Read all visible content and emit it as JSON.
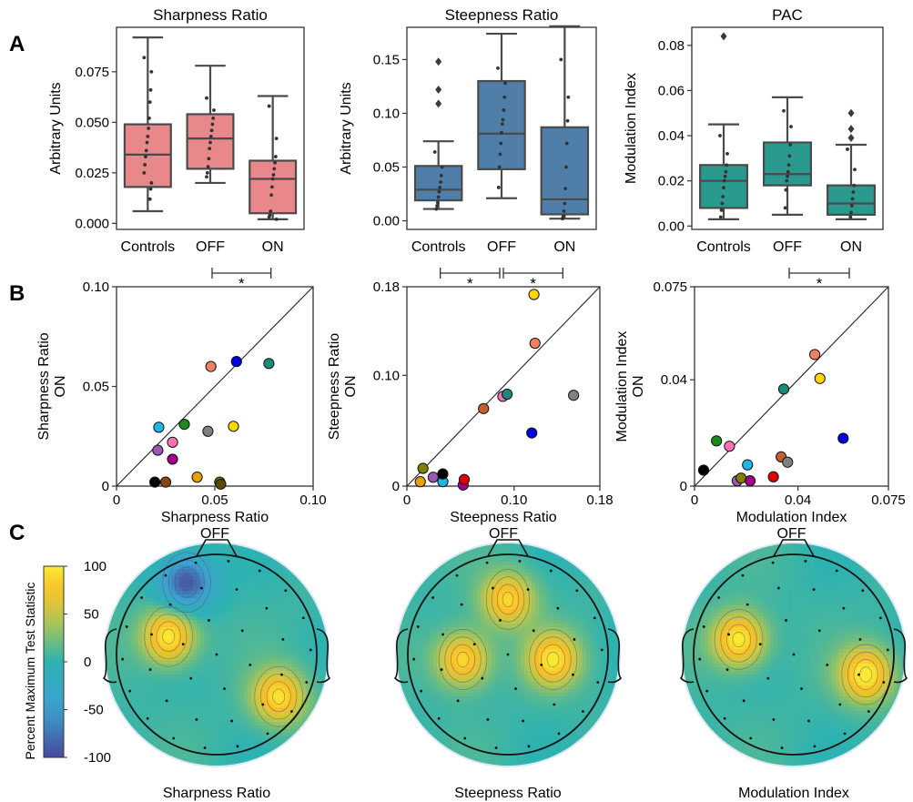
{
  "panel_labels": [
    "A",
    "B",
    "C"
  ],
  "colors": {
    "sharpness_box": "#e8888a",
    "steepness_box": "#4f7fa8",
    "pac_box": "#2a9a8f"
  },
  "chart_data": [
    {
      "type": "box",
      "id": "sharp_box",
      "title": "Sharpness Ratio",
      "ylabel": "Arbitrary Units",
      "ylim": [
        -0.003,
        0.097
      ],
      "yticks": [
        0,
        0.025,
        0.05,
        0.075
      ],
      "ytick_labels": [
        "0.000",
        "0.025",
        "0.050",
        "0.075"
      ],
      "categories": [
        "Controls",
        "OFF",
        "ON"
      ],
      "boxes": [
        {
          "q1": 0.018,
          "median": 0.034,
          "q3": 0.049,
          "whisker_low": 0.006,
          "whisker_high": 0.092,
          "outliers": []
        },
        {
          "q1": 0.027,
          "median": 0.042,
          "q3": 0.054,
          "whisker_low": 0.02,
          "whisker_high": 0.078,
          "outliers": []
        },
        {
          "q1": 0.005,
          "median": 0.022,
          "q3": 0.031,
          "whisker_low": 0.002,
          "whisker_high": 0.063,
          "outliers": []
        }
      ],
      "points": [
        [
          0.082,
          0.075,
          0.066,
          0.06,
          0.052,
          0.047,
          0.043,
          0.04,
          0.036,
          0.033,
          0.029,
          0.025,
          0.02,
          0.017,
          0.012
        ],
        [
          0.062,
          0.056,
          0.052,
          0.049,
          0.046,
          0.043,
          0.04,
          0.037,
          0.032,
          0.028,
          0.025,
          0.023
        ],
        [
          0.058,
          0.042,
          0.033,
          0.03,
          0.027,
          0.024,
          0.022,
          0.018,
          0.014,
          0.006,
          0.004,
          0.003,
          0.002
        ]
      ],
      "significance": [
        {
          "from": "OFF",
          "to": "ON",
          "label": "*"
        }
      ]
    },
    {
      "type": "box",
      "id": "steep_box",
      "title": "Steepness Ratio",
      "ylabel": "Arbitrary Units",
      "ylim": [
        -0.008,
        0.18
      ],
      "yticks": [
        0,
        0.05,
        0.1,
        0.15
      ],
      "ytick_labels": [
        "0.00",
        "0.05",
        "0.10",
        "0.15"
      ],
      "categories": [
        "Controls",
        "OFF",
        "ON"
      ],
      "boxes": [
        {
          "q1": 0.019,
          "median": 0.029,
          "q3": 0.051,
          "whisker_low": 0.011,
          "whisker_high": 0.074,
          "outliers": [
            0.148,
            0.122,
            0.109
          ]
        },
        {
          "q1": 0.048,
          "median": 0.081,
          "q3": 0.13,
          "whisker_low": 0.021,
          "whisker_high": 0.174,
          "outliers": []
        },
        {
          "q1": 0.006,
          "median": 0.02,
          "q3": 0.087,
          "whisker_low": 0.002,
          "whisker_high": 0.181,
          "outliers": []
        }
      ],
      "points": [
        [
          0.064,
          0.05,
          0.042,
          0.036,
          0.031,
          0.027,
          0.022,
          0.017,
          0.014,
          0.011
        ],
        [
          0.142,
          0.128,
          0.115,
          0.103,
          0.094,
          0.09,
          0.082,
          0.072,
          0.062,
          0.05,
          0.031
        ],
        [
          0.15,
          0.115,
          0.093,
          0.072,
          0.05,
          0.03,
          0.016,
          0.009,
          0.004,
          0.002
        ]
      ],
      "significance": [
        {
          "from": "Controls",
          "to": "OFF",
          "label": "*"
        },
        {
          "from": "OFF",
          "to": "ON",
          "label": "*"
        }
      ]
    },
    {
      "type": "box",
      "id": "pac_box",
      "title": "PAC",
      "ylabel": "Modulation Index",
      "ylim": [
        -0.0015,
        0.088
      ],
      "yticks": [
        0,
        0.02,
        0.04,
        0.06,
        0.08
      ],
      "ytick_labels": [
        "0.00",
        "0.02",
        "0.04",
        "0.06",
        "0.08"
      ],
      "categories": [
        "Controls",
        "OFF",
        "ON"
      ],
      "boxes": [
        {
          "q1": 0.008,
          "median": 0.02,
          "q3": 0.027,
          "whisker_low": 0.003,
          "whisker_high": 0.045,
          "outliers": [
            0.084
          ]
        },
        {
          "q1": 0.018,
          "median": 0.023,
          "q3": 0.037,
          "whisker_low": 0.005,
          "whisker_high": 0.057,
          "outliers": []
        },
        {
          "q1": 0.005,
          "median": 0.01,
          "q3": 0.018,
          "whisker_low": 0.003,
          "whisker_high": 0.036,
          "outliers": [
            0.05,
            0.043,
            0.039
          ]
        }
      ],
      "points": [
        [
          0.04,
          0.032,
          0.027,
          0.024,
          0.022,
          0.02,
          0.017,
          0.013,
          0.01,
          0.007,
          0.004
        ],
        [
          0.051,
          0.044,
          0.036,
          0.031,
          0.027,
          0.024,
          0.022,
          0.02,
          0.016,
          0.008
        ],
        [
          0.034,
          0.025,
          0.018,
          0.015,
          0.012,
          0.009,
          0.006,
          0.004
        ]
      ],
      "significance": [
        {
          "from": "OFF",
          "to": "ON",
          "label": "*"
        }
      ]
    },
    {
      "type": "scatter",
      "id": "sharp_scatter",
      "xlabel": [
        "Sharpness Ratio",
        "OFF"
      ],
      "ylabel": [
        "Sharpness Ratio",
        "ON"
      ],
      "xlim": [
        0,
        0.1
      ],
      "ylim": [
        0,
        0.1
      ],
      "xticks": [
        0,
        0.05,
        0.1
      ],
      "xtick_labels": [
        "0",
        "0.05",
        "0.10"
      ],
      "yticks": [
        0,
        0.05,
        0.1
      ],
      "ytick_labels": [
        "0",
        "0.05",
        "0.10"
      ],
      "identity_line": true,
      "points": [
        {
          "x": 0.0195,
          "y": 0.002,
          "color": "#000000"
        },
        {
          "x": 0.025,
          "y": 0.002,
          "color": "#8b4513"
        },
        {
          "x": 0.0215,
          "y": 0.0295,
          "color": "#1fb5e8"
        },
        {
          "x": 0.021,
          "y": 0.018,
          "color": "#9b59b6"
        },
        {
          "x": 0.0285,
          "y": 0.022,
          "color": "#ff6fb5"
        },
        {
          "x": 0.0285,
          "y": 0.0135,
          "color": "#a0008c"
        },
        {
          "x": 0.0345,
          "y": 0.031,
          "color": "#1a8a1a"
        },
        {
          "x": 0.041,
          "y": 0.0045,
          "color": "#e6a000"
        },
        {
          "x": 0.0465,
          "y": 0.0275,
          "color": "#808080"
        },
        {
          "x": 0.048,
          "y": 0.06,
          "color": "#f08060"
        },
        {
          "x": 0.0525,
          "y": 0.002,
          "color": "#808000"
        },
        {
          "x": 0.053,
          "y": 0.001,
          "color": "#5a4a00"
        },
        {
          "x": 0.0595,
          "y": 0.03,
          "color": "#ffd700"
        },
        {
          "x": 0.061,
          "y": 0.0625,
          "color": "#0000e0"
        },
        {
          "x": 0.0775,
          "y": 0.0615,
          "color": "#1a8a7a"
        }
      ]
    },
    {
      "type": "scatter",
      "id": "steep_scatter",
      "xlabel": [
        "Steepness Ratio",
        "OFF"
      ],
      "ylabel": [
        "Steepness Ratio",
        "ON"
      ],
      "xlim": [
        0,
        0.18
      ],
      "ylim": [
        0,
        0.18
      ],
      "xticks": [
        0,
        0.1,
        0.18
      ],
      "xtick_labels": [
        "0",
        "0.10",
        "0.18"
      ],
      "yticks": [
        0,
        0.1,
        0.18
      ],
      "ytick_labels": [
        "0",
        "0.10",
        "0.18"
      ],
      "identity_line": true,
      "points": [
        {
          "x": 0.0125,
          "y": 0.004,
          "color": "#e6a000"
        },
        {
          "x": 0.015,
          "y": 0.016,
          "color": "#808000"
        },
        {
          "x": 0.0245,
          "y": 0.008,
          "color": "#9b59b6"
        },
        {
          "x": 0.0335,
          "y": 0.004,
          "color": "#1fb5e8"
        },
        {
          "x": 0.0335,
          "y": 0.011,
          "color": "#000000"
        },
        {
          "x": 0.0525,
          "y": 0.001,
          "color": "#a0008c"
        },
        {
          "x": 0.0535,
          "y": 0.006,
          "color": "#e00000"
        },
        {
          "x": 0.0715,
          "y": 0.07,
          "color": "#c06030"
        },
        {
          "x": 0.0895,
          "y": 0.081,
          "color": "#ff6fb5"
        },
        {
          "x": 0.0935,
          "y": 0.083,
          "color": "#1a8a7a"
        },
        {
          "x": 0.1165,
          "y": 0.048,
          "color": "#0000e0"
        },
        {
          "x": 0.1185,
          "y": 0.173,
          "color": "#ffd700"
        },
        {
          "x": 0.1195,
          "y": 0.129,
          "color": "#f08060"
        },
        {
          "x": 0.1555,
          "y": 0.082,
          "color": "#808080"
        }
      ]
    },
    {
      "type": "scatter",
      "id": "pac_scatter",
      "xlabel": [
        "Modulation Index",
        "OFF"
      ],
      "ylabel": [
        "Modulation Index",
        "ON"
      ],
      "xlim": [
        0,
        0.075
      ],
      "ylim": [
        0,
        0.075
      ],
      "xticks": [
        0,
        0.04,
        0.075
      ],
      "xtick_labels": [
        "0",
        "0.04",
        "0.075"
      ],
      "yticks": [
        0,
        0.04,
        0.075
      ],
      "ytick_labels": [
        "0",
        "0.04",
        "0.075"
      ],
      "identity_line": true,
      "points": [
        {
          "x": 0.0035,
          "y": 0.006,
          "color": "#000000"
        },
        {
          "x": 0.0085,
          "y": 0.017,
          "color": "#1a8a1a"
        },
        {
          "x": 0.0135,
          "y": 0.015,
          "color": "#ff6fb5"
        },
        {
          "x": 0.0165,
          "y": 0.002,
          "color": "#9b59b6"
        },
        {
          "x": 0.018,
          "y": 0.003,
          "color": "#808000"
        },
        {
          "x": 0.0205,
          "y": 0.008,
          "color": "#1fb5e8"
        },
        {
          "x": 0.0215,
          "y": 0.002,
          "color": "#a0008c"
        },
        {
          "x": 0.0305,
          "y": 0.0035,
          "color": "#e00000"
        },
        {
          "x": 0.0335,
          "y": 0.011,
          "color": "#c06030"
        },
        {
          "x": 0.0345,
          "y": 0.0365,
          "color": "#1a8a7a"
        },
        {
          "x": 0.036,
          "y": 0.009,
          "color": "#808080"
        },
        {
          "x": 0.0465,
          "y": 0.0495,
          "color": "#f08060"
        },
        {
          "x": 0.0485,
          "y": 0.0405,
          "color": "#ffd700"
        },
        {
          "x": 0.0575,
          "y": 0.018,
          "color": "#0000e0"
        }
      ]
    },
    {
      "type": "heatmap",
      "id": "topomaps",
      "colorbar_label": "Percent Maximum Test Statistic",
      "colorbar_range": [
        -100,
        100
      ],
      "colorbar_ticks": [
        -100,
        -50,
        0,
        50,
        100
      ],
      "colorbar_tick_labels": [
        "-100",
        "-50",
        "0",
        "50",
        "100"
      ],
      "maps": [
        {
          "label": "Sharpness Ratio",
          "blobs": [
            {
              "x": -0.48,
              "y": -0.18,
              "v": 1.0
            },
            {
              "x": 0.62,
              "y": 0.42,
              "v": 0.9
            },
            {
              "x": -0.3,
              "y": -0.72,
              "v": -1.0
            }
          ]
        },
        {
          "label": "Steepness Ratio",
          "blobs": [
            {
              "x": 0.0,
              "y": -0.55,
              "v": 0.85
            },
            {
              "x": -0.45,
              "y": 0.05,
              "v": 0.9
            },
            {
              "x": 0.45,
              "y": 0.05,
              "v": 0.9
            }
          ]
        },
        {
          "label": "Modulation Index",
          "blobs": [
            {
              "x": -0.55,
              "y": -0.15,
              "v": 1.0
            },
            {
              "x": 0.72,
              "y": 0.2,
              "v": 1.0
            }
          ]
        }
      ]
    }
  ]
}
